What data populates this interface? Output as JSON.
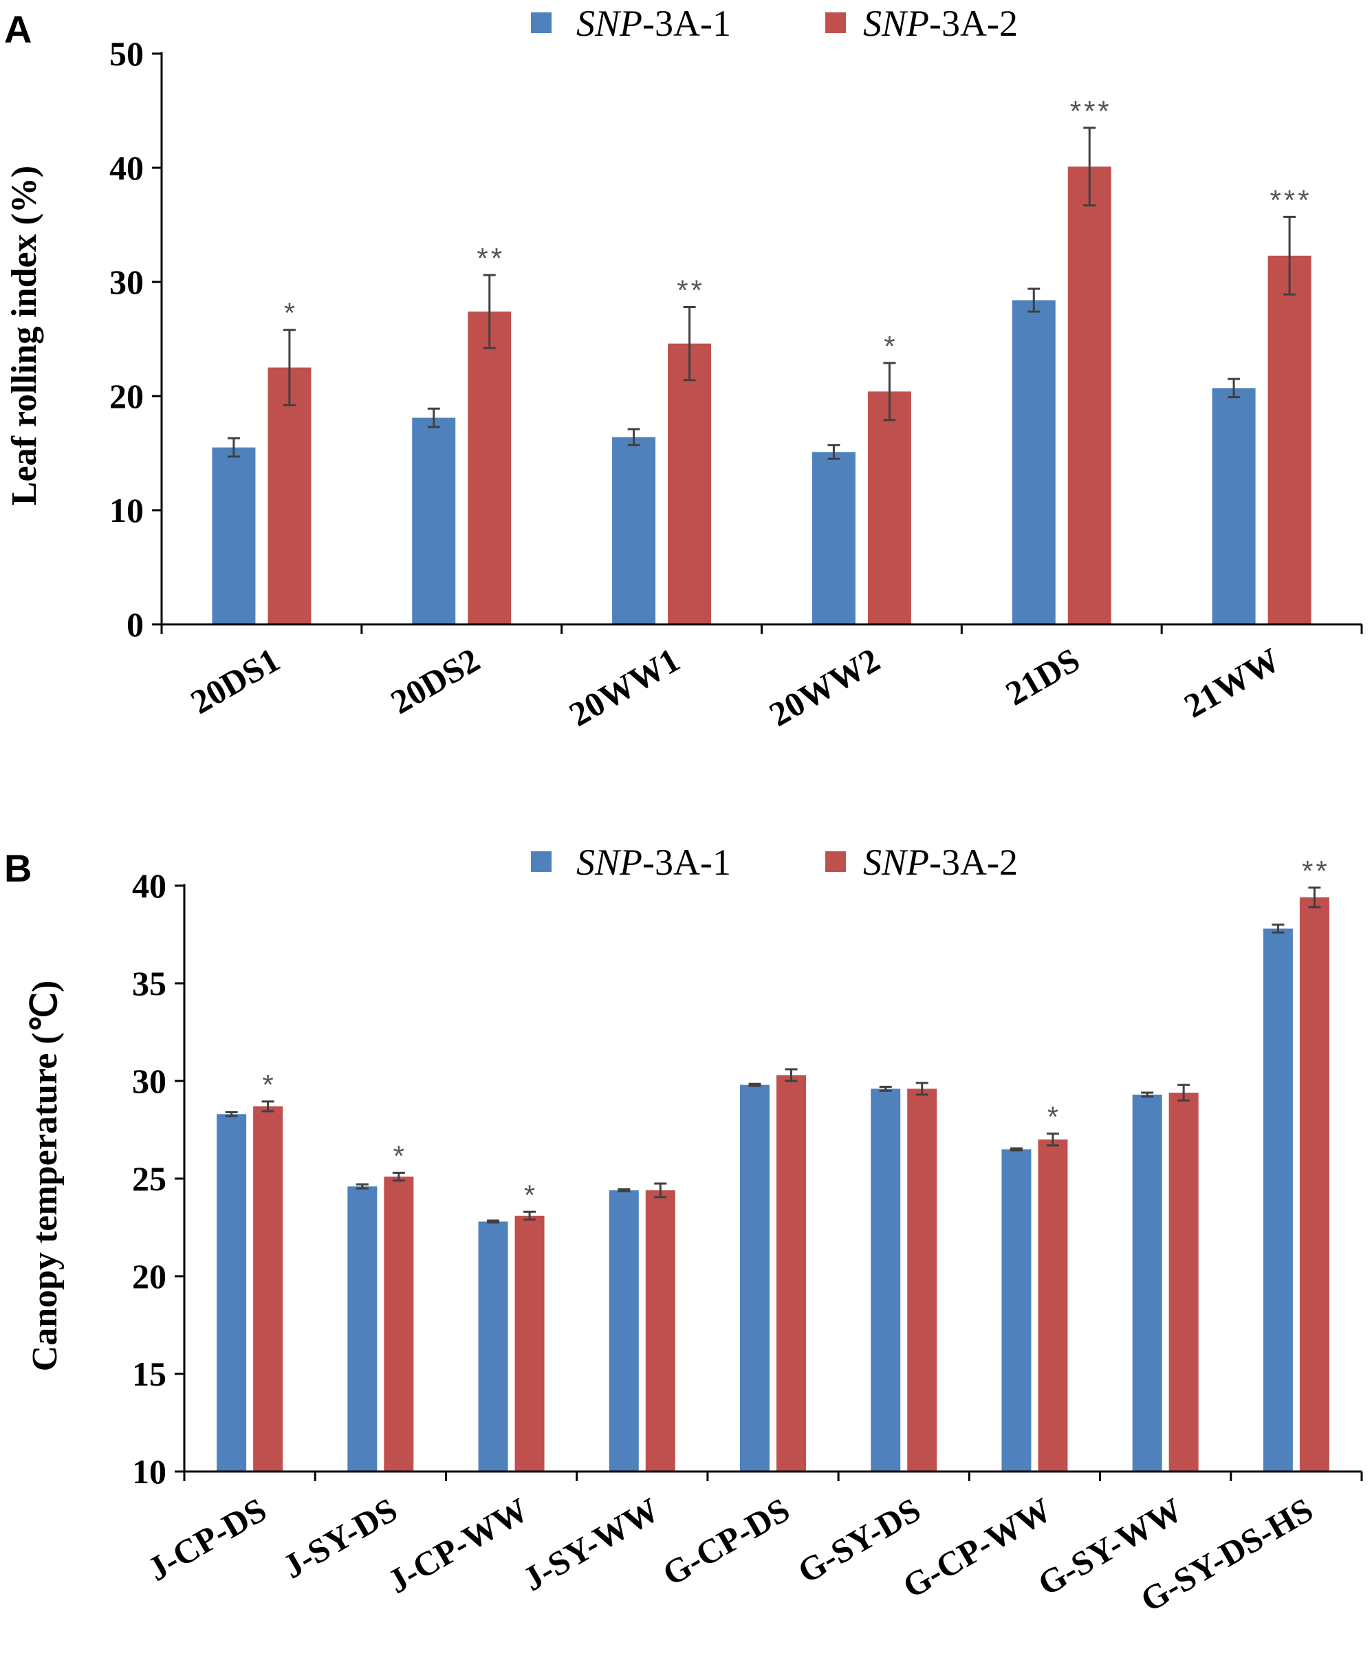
{
  "colors": {
    "series1": "#4f81bd",
    "series2": "#c0504d",
    "error_bar": "#404040",
    "axis": "#000000"
  },
  "chart_data": [
    {
      "panel": "A",
      "type": "bar",
      "title": "",
      "xlabel": "",
      "ylabel": "Leaf rolling index (%)",
      "ylim": [
        0,
        50
      ],
      "yticks": [
        "0",
        "10",
        "20",
        "30",
        "40",
        "50"
      ],
      "legend_position": "top-center",
      "categories": [
        "20DS1",
        "20DS2",
        "20WW1",
        "20WW2",
        "21DS",
        "21WW"
      ],
      "series": [
        {
          "name_italic": "SNP",
          "name_rest": "-3A-1",
          "values": [
            15.5,
            18.1,
            16.4,
            15.1,
            28.4,
            20.7
          ],
          "errors": [
            0.8,
            0.8,
            0.7,
            0.6,
            1.0,
            0.8
          ]
        },
        {
          "name_italic": "SNP",
          "name_rest": "-3A-2",
          "values": [
            22.5,
            27.4,
            24.6,
            20.4,
            40.1,
            32.3
          ],
          "errors": [
            3.3,
            3.2,
            3.2,
            2.5,
            3.4,
            3.4
          ]
        }
      ],
      "significance": [
        "*",
        "**",
        "**",
        "*",
        "***",
        "***"
      ]
    },
    {
      "panel": "B",
      "type": "bar",
      "title": "",
      "xlabel": "",
      "ylabel": "Canopy temperature (℃)",
      "ylim": [
        10,
        40
      ],
      "yticks": [
        "10",
        "15",
        "20",
        "25",
        "30",
        "35",
        "40"
      ],
      "legend_position": "top-center",
      "categories": [
        "J-CP-DS",
        "J-SY-DS",
        "J-CP-WW",
        "J-SY-WW",
        "G-CP-DS",
        "G-SY-DS",
        "G-CP-WW",
        "G-SY-WW",
        "G-SY-DS-HS"
      ],
      "series": [
        {
          "name_italic": "SNP",
          "name_rest": "-3A-1",
          "values": [
            28.3,
            24.6,
            22.8,
            24.4,
            29.8,
            29.6,
            26.5,
            29.3,
            37.8
          ],
          "errors": [
            0.1,
            0.1,
            0.05,
            0.05,
            0.05,
            0.1,
            0.05,
            0.1,
            0.2
          ]
        },
        {
          "name_italic": "SNP",
          "name_rest": "-3A-2",
          "values": [
            28.7,
            25.1,
            23.1,
            24.4,
            30.3,
            29.6,
            27.0,
            29.4,
            39.4
          ],
          "errors": [
            0.25,
            0.2,
            0.2,
            0.35,
            0.3,
            0.3,
            0.3,
            0.4,
            0.5
          ]
        }
      ],
      "significance": [
        "*",
        "*",
        "*",
        "",
        "",
        "",
        "*",
        "",
        "**"
      ]
    }
  ]
}
